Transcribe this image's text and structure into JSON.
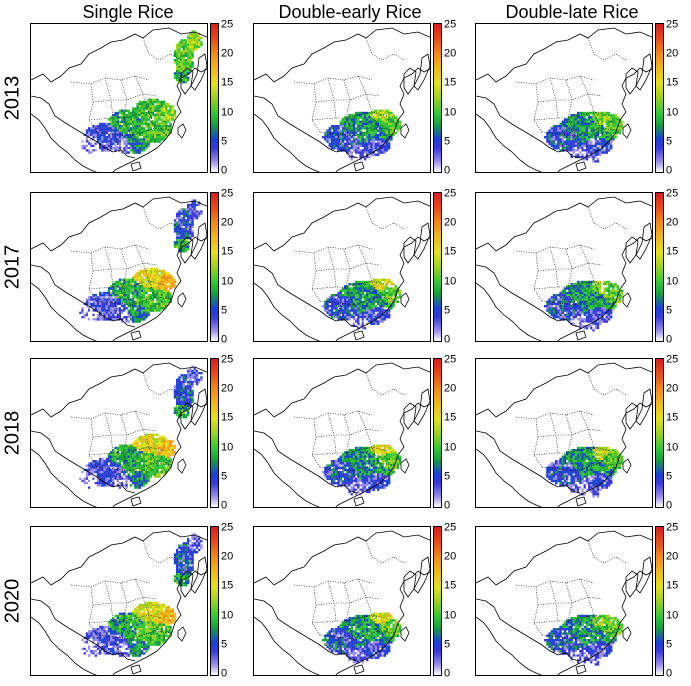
{
  "columns": [
    "Single Rice",
    "Double-early Rice",
    "Double-late Rice"
  ],
  "rows": [
    "2013",
    "2017",
    "2018",
    "2020"
  ],
  "colorbar": {
    "ticks": [
      "25",
      "20",
      "15",
      "10",
      "5",
      "0"
    ],
    "min": 0,
    "max": 25,
    "colors": [
      "#ffffff",
      "#9a8ee8",
      "#3a3ad8",
      "#18a040",
      "#36c836",
      "#9ed21e",
      "#e6e01a",
      "#f0b81a",
      "#f08a1a",
      "#ea4a1a",
      "#d81e1e"
    ]
  }
}
